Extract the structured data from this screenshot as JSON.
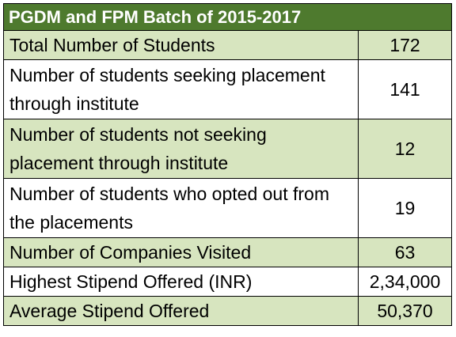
{
  "title": "PGDM and FPM Batch of 2015-2017",
  "colors": {
    "header_bg": "#4e7a2e",
    "header_text": "#ffffff",
    "shade_row": "#d7e5bf",
    "plain_row": "#ffffff",
    "border": "#000000"
  },
  "rows": [
    {
      "label": "Total Number of Students",
      "value": "172"
    },
    {
      "label": "Number of students seeking placement through institute",
      "value": "141"
    },
    {
      "label": "Number of students not seeking placement through institute",
      "value": "12"
    },
    {
      "label": "Number of students who opted out from the placements",
      "value": "19"
    },
    {
      "label": "Number of Companies Visited",
      "value": "63"
    },
    {
      "label": "Highest Stipend Offered (INR)",
      "value": "2,34,000"
    },
    {
      "label": "Average Stipend Offered",
      "value": "50,370"
    }
  ]
}
